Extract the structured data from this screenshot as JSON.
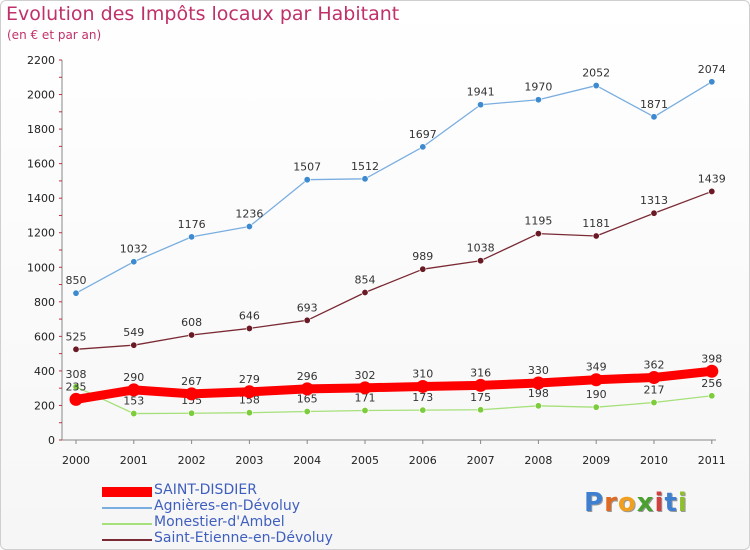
{
  "title": "Evolution des Impôts locaux par Habitant",
  "subtitle": "(en € et par an)",
  "logo": {
    "text": "Proxiti",
    "letters": [
      "P",
      "r",
      "o",
      "x",
      "i",
      "t",
      "i"
    ],
    "colors": [
      "#3f7fd0",
      "#e06a20",
      "#f0a020",
      "#4aa030",
      "#d04040",
      "#3f7fd0",
      "#8fbf30"
    ]
  },
  "chart_data": {
    "type": "line",
    "x": [
      "2000",
      "2001",
      "2002",
      "2003",
      "2004",
      "2005",
      "2006",
      "2007",
      "2008",
      "2009",
      "2010",
      "2011"
    ],
    "ylim": [
      0,
      2200
    ],
    "yticks": [
      0,
      200,
      400,
      600,
      800,
      1000,
      1200,
      1400,
      1600,
      1800,
      2000,
      2200
    ],
    "grid": false,
    "legend_position": "bottom-left",
    "series": [
      {
        "name": "Agnières-en-Dévoluy",
        "color": "#3d8ad0",
        "line_color": "#7aaee0",
        "values": [
          850,
          1032,
          1176,
          1236,
          1507,
          1512,
          1697,
          1941,
          1970,
          2052,
          1871,
          2074
        ],
        "labels": [
          "850",
          "1032",
          "1176",
          "1236",
          "1507",
          "1512",
          "1697",
          "1941",
          "1970",
          "2052",
          "1871",
          "2074"
        ]
      },
      {
        "name": "Saint-Etienne-en-Dévoluy",
        "color": "#6a1a24",
        "line_color": "#7a2a34",
        "values": [
          525,
          549,
          608,
          646,
          693,
          854,
          989,
          1038,
          1195,
          1181,
          1313,
          1439
        ],
        "labels": [
          "525",
          "549",
          "608",
          "646",
          "693",
          "854",
          "989",
          "1038",
          "1195",
          "1181",
          "1313",
          "1439"
        ]
      },
      {
        "name": "Monestier-d'Ambel",
        "color": "#7ccc3c",
        "line_color": "#a6e07a",
        "values": [
          308,
          153,
          155,
          158,
          165,
          171,
          173,
          175,
          198,
          190,
          217,
          256
        ],
        "labels": [
          "308",
          "153",
          "155",
          "158",
          "165",
          "171",
          "173",
          "175",
          "198",
          "190",
          "217",
          "256"
        ]
      },
      {
        "name": "SAINT-DISDIER",
        "color": "#ff0000",
        "line_color": "#ff0000",
        "values": [
          235,
          290,
          267,
          279,
          296,
          302,
          310,
          316,
          330,
          349,
          362,
          398
        ],
        "labels": [
          "235",
          "290",
          "267",
          "279",
          "296",
          "302",
          "310",
          "316",
          "330",
          "349",
          "362",
          "398"
        ]
      }
    ],
    "legend_order": [
      "SAINT-DISDIER",
      "Agnières-en-Dévoluy",
      "Monestier-d'Ambel",
      "Saint-Etienne-en-Dévoluy"
    ]
  }
}
